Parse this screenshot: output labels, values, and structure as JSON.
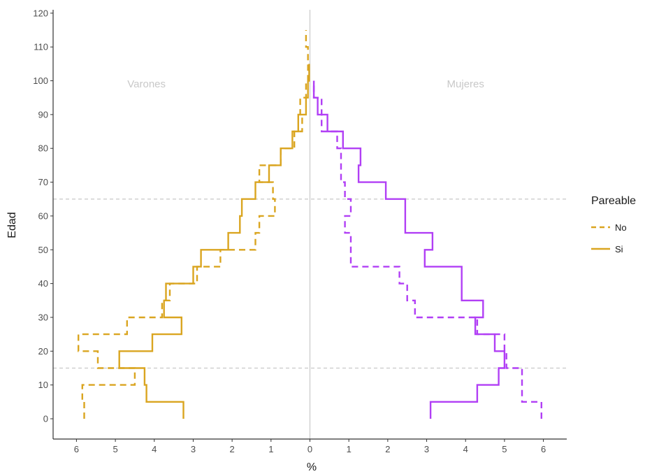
{
  "chart_data": {
    "type": "line",
    "title": "",
    "xlabel": "%",
    "ylabel": "Edad",
    "xlim": [
      -6.6,
      6.6
    ],
    "ylim": [
      -6,
      121
    ],
    "x_ticks": [
      -6,
      -5,
      -4,
      -3,
      -2,
      -1,
      0,
      1,
      2,
      3,
      4,
      5,
      6
    ],
    "x_tick_labels": [
      "6",
      "5",
      "4",
      "3",
      "2",
      "1",
      "0",
      "1",
      "2",
      "3",
      "4",
      "5",
      "6"
    ],
    "y_ticks": [
      0,
      10,
      20,
      30,
      40,
      50,
      60,
      70,
      80,
      90,
      100,
      110,
      120
    ],
    "y_tick_labels": [
      "0",
      "10",
      "20",
      "30",
      "40",
      "50",
      "60",
      "70",
      "80",
      "90",
      "100",
      "110",
      "120"
    ],
    "grid": false,
    "reference_lines": {
      "horizontal": [
        15,
        65
      ],
      "vertical": [
        0
      ]
    },
    "annotations": [
      {
        "text": "Varones",
        "x": -4.2,
        "y": 98
      },
      {
        "text": "Mujeres",
        "x": 4,
        "y": 98
      }
    ],
    "legend": {
      "title": "Pareable",
      "position": "right",
      "entries": [
        {
          "label": "No",
          "linetype": "dashed"
        },
        {
          "label": "Si",
          "linetype": "solid"
        }
      ]
    },
    "colors": {
      "varones": "#DAA520",
      "mujeres": "#B13FF5",
      "reference": "#c8c8c8",
      "axis": "#333333"
    },
    "series": [
      {
        "name": "No",
        "sex": "Varones",
        "linetype": "dashed",
        "points": [
          [
            -5.8,
            0
          ],
          [
            -5.8,
            5
          ],
          [
            -5.85,
            5
          ],
          [
            -5.85,
            10
          ],
          [
            -4.5,
            10
          ],
          [
            -4.5,
            15
          ],
          [
            -5.45,
            15
          ],
          [
            -5.45,
            20
          ],
          [
            -5.95,
            20
          ],
          [
            -5.95,
            25
          ],
          [
            -4.7,
            25
          ],
          [
            -4.7,
            30
          ],
          [
            -3.8,
            30
          ],
          [
            -3.8,
            35
          ],
          [
            -3.6,
            35
          ],
          [
            -3.6,
            40
          ],
          [
            -2.9,
            40
          ],
          [
            -2.9,
            45
          ],
          [
            -2.3,
            45
          ],
          [
            -2.3,
            50
          ],
          [
            -1.4,
            50
          ],
          [
            -1.4,
            55
          ],
          [
            -1.3,
            55
          ],
          [
            -1.3,
            60
          ],
          [
            -0.9,
            60
          ],
          [
            -0.9,
            65
          ],
          [
            -0.95,
            65
          ],
          [
            -0.95,
            70
          ],
          [
            -1.3,
            70
          ],
          [
            -1.3,
            75
          ],
          [
            -0.75,
            75
          ],
          [
            -0.75,
            80
          ],
          [
            -0.4,
            80
          ],
          [
            -0.4,
            85
          ],
          [
            -0.2,
            85
          ],
          [
            -0.2,
            90
          ],
          [
            -0.25,
            90
          ],
          [
            -0.25,
            95
          ],
          [
            -0.1,
            95
          ],
          [
            -0.1,
            100
          ],
          [
            -0.05,
            100
          ],
          [
            -0.05,
            110
          ],
          [
            -0.1,
            110
          ],
          [
            -0.1,
            115
          ]
        ]
      },
      {
        "name": "Si",
        "sex": "Varones",
        "linetype": "solid",
        "points": [
          [
            -3.25,
            0
          ],
          [
            -3.25,
            5
          ],
          [
            -4.2,
            5
          ],
          [
            -4.2,
            10
          ],
          [
            -4.25,
            10
          ],
          [
            -4.25,
            15
          ],
          [
            -4.9,
            15
          ],
          [
            -4.9,
            20
          ],
          [
            -4.05,
            20
          ],
          [
            -4.05,
            25
          ],
          [
            -3.3,
            25
          ],
          [
            -3.3,
            30
          ],
          [
            -3.75,
            30
          ],
          [
            -3.75,
            35
          ],
          [
            -3.7,
            35
          ],
          [
            -3.7,
            40
          ],
          [
            -3.0,
            40
          ],
          [
            -3.0,
            45
          ],
          [
            -2.8,
            45
          ],
          [
            -2.8,
            50
          ],
          [
            -2.1,
            50
          ],
          [
            -2.1,
            55
          ],
          [
            -1.8,
            55
          ],
          [
            -1.8,
            60
          ],
          [
            -1.75,
            60
          ],
          [
            -1.75,
            65
          ],
          [
            -1.4,
            65
          ],
          [
            -1.4,
            70
          ],
          [
            -1.05,
            70
          ],
          [
            -1.05,
            75
          ],
          [
            -0.75,
            75
          ],
          [
            -0.75,
            80
          ],
          [
            -0.45,
            80
          ],
          [
            -0.45,
            85
          ],
          [
            -0.3,
            85
          ],
          [
            -0.3,
            90
          ],
          [
            -0.1,
            90
          ],
          [
            -0.1,
            95
          ],
          [
            -0.05,
            95
          ],
          [
            -0.05,
            100
          ],
          [
            -0.02,
            100
          ],
          [
            -0.02,
            105
          ]
        ]
      },
      {
        "name": "No",
        "sex": "Mujeres",
        "linetype": "dashed",
        "points": [
          [
            5.95,
            0
          ],
          [
            5.95,
            5
          ],
          [
            5.45,
            5
          ],
          [
            5.45,
            15
          ],
          [
            5.05,
            15
          ],
          [
            5.05,
            20
          ],
          [
            5.0,
            20
          ],
          [
            5.0,
            25
          ],
          [
            4.3,
            25
          ],
          [
            4.3,
            30
          ],
          [
            2.7,
            30
          ],
          [
            2.7,
            35
          ],
          [
            2.5,
            35
          ],
          [
            2.5,
            40
          ],
          [
            2.3,
            40
          ],
          [
            2.3,
            45
          ],
          [
            1.05,
            45
          ],
          [
            1.05,
            55
          ],
          [
            0.9,
            55
          ],
          [
            0.9,
            60
          ],
          [
            1.05,
            60
          ],
          [
            1.05,
            65
          ],
          [
            0.9,
            65
          ],
          [
            0.9,
            70
          ],
          [
            0.8,
            70
          ],
          [
            0.8,
            80
          ],
          [
            0.7,
            80
          ],
          [
            0.7,
            85
          ],
          [
            0.3,
            85
          ],
          [
            0.3,
            95
          ],
          [
            0.1,
            95
          ],
          [
            0.1,
            100
          ]
        ]
      },
      {
        "name": "Si",
        "sex": "Mujeres",
        "linetype": "solid",
        "points": [
          [
            3.1,
            0
          ],
          [
            3.1,
            5
          ],
          [
            4.3,
            5
          ],
          [
            4.3,
            10
          ],
          [
            4.85,
            10
          ],
          [
            4.85,
            15
          ],
          [
            5.0,
            15
          ],
          [
            5.0,
            20
          ],
          [
            4.75,
            20
          ],
          [
            4.75,
            25
          ],
          [
            4.25,
            25
          ],
          [
            4.25,
            30
          ],
          [
            4.45,
            30
          ],
          [
            4.45,
            35
          ],
          [
            3.9,
            35
          ],
          [
            3.9,
            45
          ],
          [
            2.95,
            45
          ],
          [
            2.95,
            50
          ],
          [
            3.15,
            50
          ],
          [
            3.15,
            55
          ],
          [
            2.45,
            55
          ],
          [
            2.45,
            65
          ],
          [
            1.95,
            65
          ],
          [
            1.95,
            70
          ],
          [
            1.25,
            70
          ],
          [
            1.25,
            75
          ],
          [
            1.3,
            75
          ],
          [
            1.3,
            80
          ],
          [
            0.85,
            80
          ],
          [
            0.85,
            85
          ],
          [
            0.45,
            85
          ],
          [
            0.45,
            90
          ],
          [
            0.2,
            90
          ],
          [
            0.2,
            95
          ],
          [
            0.1,
            95
          ],
          [
            0.1,
            100
          ]
        ]
      }
    ]
  }
}
